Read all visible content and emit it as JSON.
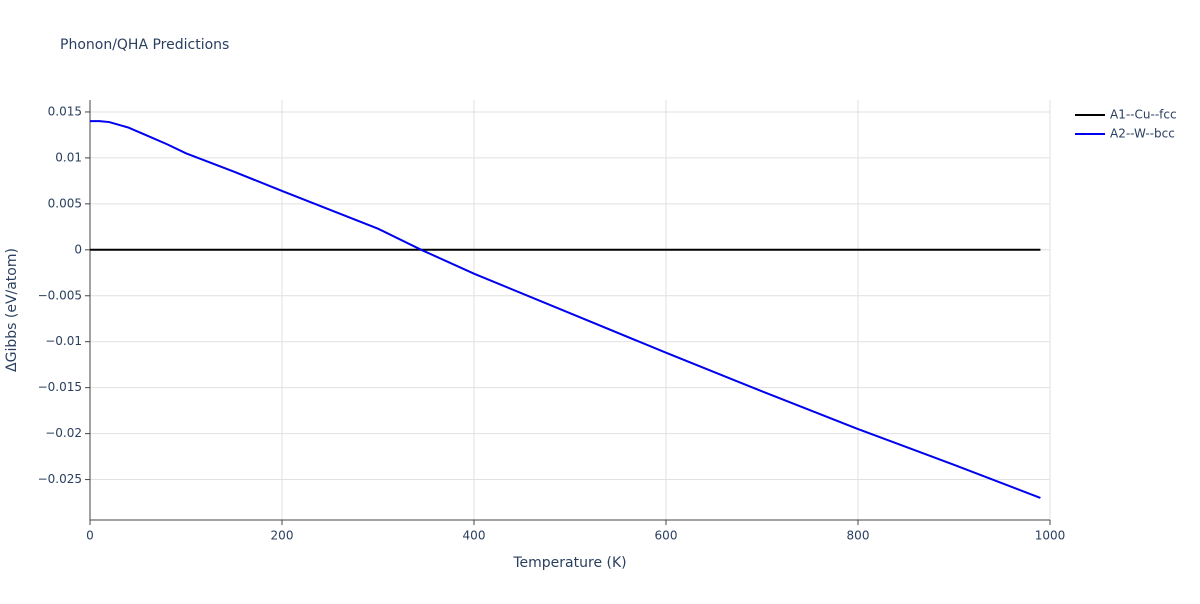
{
  "chart_data": {
    "type": "line",
    "title": "Phonon/QHA Predictions",
    "x_label": "Temperature (K)",
    "y_label": "ΔGibbs (eV/atom)",
    "series": [
      {
        "name": "A1--Cu--fcc",
        "color": "#000000",
        "x": [
          0,
          100,
          200,
          300,
          400,
          500,
          600,
          700,
          800,
          900,
          990
        ],
        "values": [
          0,
          0,
          0,
          0,
          0,
          0,
          0,
          0,
          0,
          0,
          0
        ]
      },
      {
        "name": "A2--W--bcc",
        "color": "#0000ee",
        "x": [
          0,
          10,
          20,
          30,
          40,
          60,
          80,
          100,
          150,
          200,
          300,
          345,
          400,
          500,
          600,
          700,
          800,
          900,
          990
        ],
        "values": [
          0.014,
          0.014,
          0.0139,
          0.0136,
          0.0133,
          0.0124,
          0.0115,
          0.0105,
          0.0085,
          0.0064,
          0.0023,
          0.0,
          -0.0026,
          -0.0069,
          -0.0112,
          -0.0154,
          -0.0195,
          -0.0234,
          -0.027
        ]
      }
    ],
    "xlim": [
      0,
      1000
    ],
    "ylim": [
      -0.0294,
      0.0163
    ],
    "xticks": [
      0,
      200,
      400,
      600,
      800,
      1000
    ],
    "yticks": [
      0.015,
      0.01,
      0.005,
      0,
      {
        "value": -0.005,
        "label": "−0.005"
      },
      {
        "value": -0.01,
        "label": "−0.01"
      },
      {
        "value": -0.015,
        "label": "−0.015"
      },
      {
        "value": -0.02,
        "label": "−0.02"
      },
      {
        "value": -0.025,
        "label": "−0.025"
      }
    ],
    "grid": true,
    "legend": "top-right"
  }
}
